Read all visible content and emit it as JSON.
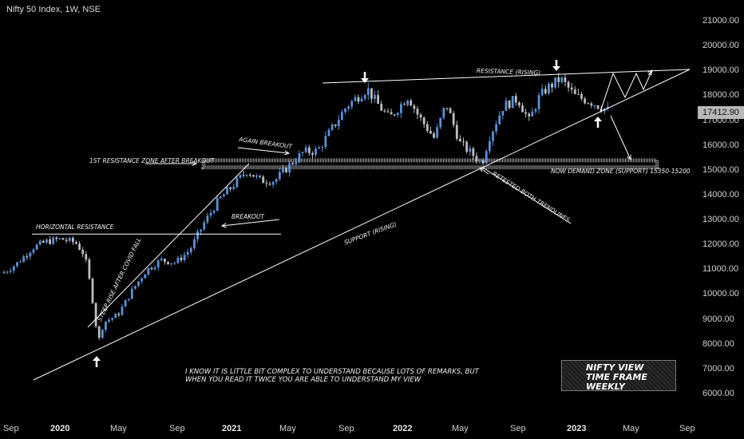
{
  "header": {
    "symbol_line": "Nifty 50 Index, 1W, NSE"
  },
  "price_tag": "17412.90",
  "colors": {
    "up": "#5b8fd9",
    "down": "#bdbdbd",
    "background": "#000000",
    "lines": "#ffffff"
  },
  "y_labels": [
    "21000.00",
    "20000.00",
    "19000.00",
    "18000.00",
    "17000.00",
    "16000.00",
    "15000.00",
    "14000.00",
    "13000.00",
    "12000.00",
    "11000.00",
    "10000.00",
    "9000.00",
    "8000.00",
    "7000.00",
    "6000.00"
  ],
  "x_labels": [
    {
      "text": "Sep",
      "bold": false
    },
    {
      "text": "2020",
      "bold": true
    },
    {
      "text": "May",
      "bold": false
    },
    {
      "text": "Sep",
      "bold": false
    },
    {
      "text": "2021",
      "bold": true
    },
    {
      "text": "May",
      "bold": false
    },
    {
      "text": "Sep",
      "bold": false
    },
    {
      "text": "2022",
      "bold": true
    },
    {
      "text": "May",
      "bold": false
    },
    {
      "text": "Sep",
      "bold": false
    },
    {
      "text": "2023",
      "bold": true
    },
    {
      "text": "May",
      "bold": false
    },
    {
      "text": "Sep",
      "bold": false
    }
  ],
  "annotations": {
    "horizontal_resistance": "HORIZONTAL RESISTANCE",
    "steep_rise": "STEEP RISE AFTER COVID FALL",
    "breakout": "BREAKOUT",
    "first_resistance_zone": "1ST RESISTANCE ZONE AFTER BREAKOUT",
    "again_breakout": "AGAIN BREAKOUT",
    "resistance_rising": "RESISTANCE (RISING)",
    "support_rising": "SUPPORT (RISING)",
    "retested": "RETESTED BOTH TRENDLINES",
    "demand_zone": "NOW DEMAND ZONE (SUPPORT) 15350-15200",
    "bottom_note_1": "I KNOW IT IS LITTLE BIT COMPLEX TO UNDERSTAND BECAUSE LOTS OF REMARKS, BUT",
    "bottom_note_2": "WHEN YOU READ IT TWICE YOU ARE ABLE TO UNDERSTAND MY VIEW",
    "view_1": "NIFTY VIEW",
    "view_2": "TIME FRAME WEEKLY"
  },
  "chart_data": {
    "type": "candlestick",
    "title": "",
    "timeframe": "1W",
    "ylim": [
      5800,
      21600
    ],
    "x_ticks": [
      "Sep 2019",
      "Jan 2020",
      "May 2020",
      "Sep 2020",
      "Jan 2021",
      "May 2021",
      "Sep 2021",
      "Jan 2022",
      "May 2022",
      "Sep 2022",
      "Jan 2023",
      "May 2023",
      "Sep 2023"
    ],
    "weekly_close_approx": [
      [
        "2019-09-01",
        10900
      ],
      [
        "2019-10-01",
        11300
      ],
      [
        "2019-11-01",
        11900
      ],
      [
        "2019-12-01",
        12150
      ],
      [
        "2020-01-01",
        12250
      ],
      [
        "2020-02-01",
        12100
      ],
      [
        "2020-02-20",
        11600
      ],
      [
        "2020-03-05",
        10200
      ],
      [
        "2020-03-20",
        8100
      ],
      [
        "2020-04-01",
        8900
      ],
      [
        "2020-05-01",
        9200
      ],
      [
        "2020-06-01",
        10200
      ],
      [
        "2020-07-01",
        11000
      ],
      [
        "2020-08-01",
        11400
      ],
      [
        "2020-09-01",
        11300
      ],
      [
        "2020-10-01",
        11800
      ],
      [
        "2020-11-01",
        12900
      ],
      [
        "2020-12-01",
        13800
      ],
      [
        "2021-01-01",
        14400
      ],
      [
        "2021-02-01",
        15000
      ],
      [
        "2021-03-01",
        14600
      ],
      [
        "2021-04-01",
        14600
      ],
      [
        "2021-05-01",
        15200
      ],
      [
        "2021-06-01",
        15750
      ],
      [
        "2021-07-01",
        15800
      ],
      [
        "2021-08-01",
        16700
      ],
      [
        "2021-09-01",
        17600
      ],
      [
        "2021-10-15",
        18300
      ],
      [
        "2021-11-01",
        17800
      ],
      [
        "2021-12-01",
        17100
      ],
      [
        "2022-01-10",
        18000
      ],
      [
        "2022-02-01",
        17200
      ],
      [
        "2022-03-07",
        16300
      ],
      [
        "2022-04-01",
        17700
      ],
      [
        "2022-05-01",
        16100
      ],
      [
        "2022-06-17",
        15300
      ],
      [
        "2022-07-01",
        16300
      ],
      [
        "2022-08-01",
        17600
      ],
      [
        "2022-09-01",
        17900
      ],
      [
        "2022-09-25",
        17000
      ],
      [
        "2022-10-15",
        17900
      ],
      [
        "2022-11-01",
        18300
      ],
      [
        "2022-12-01",
        18700
      ],
      [
        "2023-01-01",
        18000
      ],
      [
        "2023-02-01",
        17800
      ],
      [
        "2023-03-15",
        17400
      ]
    ],
    "trendlines": [
      {
        "label": "HORIZONTAL RESISTANCE",
        "level": 12450
      },
      {
        "label": "1ST RESISTANCE ZONE AFTER BREAKOUT",
        "range": [
          15200,
          15350
        ]
      },
      {
        "label": "RESISTANCE (RISING)",
        "from": [
          "2021-10-15",
          18700
        ],
        "to": [
          "2023-09-30",
          19000
        ]
      },
      {
        "label": "SUPPORT (RISING)",
        "from": [
          "2019-09-15",
          6500
        ],
        "to": [
          "2023-09-30",
          19000
        ]
      }
    ],
    "grid": false,
    "legend": "none"
  }
}
